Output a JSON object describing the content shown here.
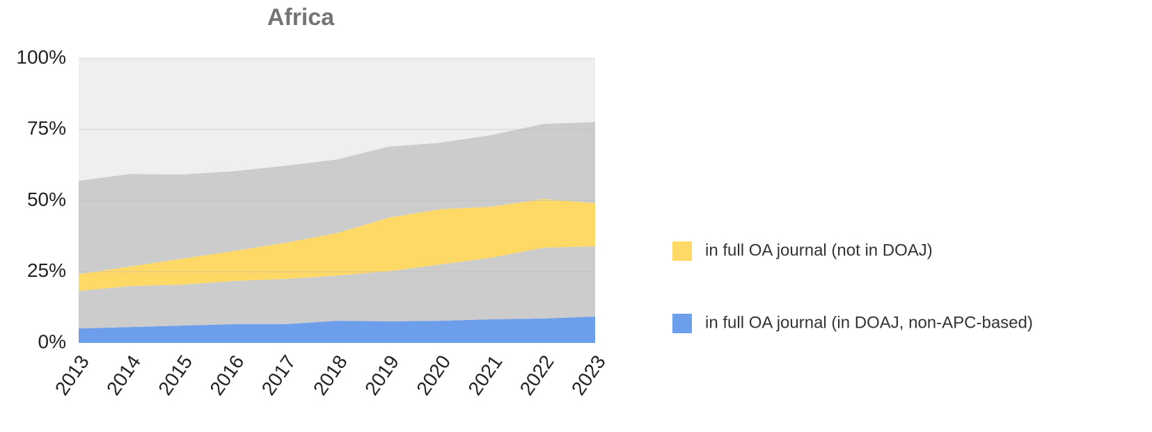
{
  "chart_data": {
    "type": "area",
    "stacked": true,
    "title": "Africa",
    "categories": [
      "2013",
      "2014",
      "2015",
      "2016",
      "2017",
      "2018",
      "2019",
      "2020",
      "2021",
      "2022",
      "2023"
    ],
    "series": [
      {
        "name": "in full OA journal (in DOAJ, non-APC-based)",
        "color": "#6d9eeb",
        "values": [
          5.1,
          5.6,
          6.1,
          6.6,
          6.6,
          7.8,
          7.6,
          7.8,
          8.3,
          8.6,
          9.3
        ]
      },
      {
        "color": "#cccccc",
        "values": [
          13.2,
          14.4,
          14.4,
          15.2,
          15.9,
          15.9,
          17.6,
          19.8,
          21.7,
          24.9,
          24.7
        ]
      },
      {
        "name": "in full OA journal (not in DOAJ)",
        "color": "#ffd966",
        "values": [
          5.9,
          6.9,
          9.1,
          10.5,
          12.7,
          14.9,
          18.8,
          19.4,
          17.9,
          17.1,
          15.1
        ]
      },
      {
        "color": "#cccccc",
        "values": [
          32.8,
          32.5,
          29.6,
          28.1,
          27.1,
          25.9,
          25.0,
          23.4,
          25.2,
          26.4,
          28.6
        ]
      },
      {
        "color": "#efefef",
        "values": [
          43.0,
          40.6,
          40.8,
          39.6,
          37.7,
          35.5,
          31.0,
          29.6,
          26.9,
          23.0,
          22.3
        ]
      }
    ],
    "ylim": [
      0,
      100
    ],
    "yticks": [
      {
        "value": 0,
        "label": "0%"
      },
      {
        "value": 25,
        "label": "25%"
      },
      {
        "value": 50,
        "label": "50%"
      },
      {
        "value": 75,
        "label": "75%"
      },
      {
        "value": 100,
        "label": "100%"
      }
    ],
    "legend": "right"
  }
}
